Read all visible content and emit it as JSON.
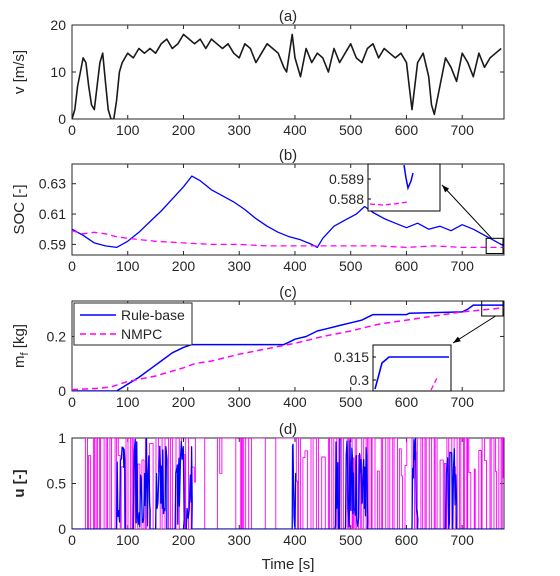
{
  "colors": {
    "black": "#1a1a1a",
    "rule": "#0000ff",
    "nmpc": "#ff00ff",
    "axis": "#262626"
  },
  "chart_data": [
    {
      "id": "a",
      "type": "line",
      "title": "(a)",
      "ylabel": "v [m/s]",
      "xlabel": "",
      "xlim": [
        0,
        775
      ],
      "ylim": [
        0,
        20
      ],
      "xticks": [
        0,
        100,
        200,
        300,
        400,
        500,
        600,
        700
      ],
      "yticks": [
        0,
        10,
        20
      ],
      "series": [
        {
          "name": "",
          "color": "#1a1a1a",
          "x": [
            0,
            5,
            10,
            15,
            20,
            25,
            30,
            35,
            40,
            45,
            50,
            55,
            60,
            65,
            70,
            75,
            80,
            85,
            90,
            100,
            110,
            120,
            130,
            140,
            150,
            160,
            170,
            180,
            190,
            200,
            210,
            220,
            230,
            240,
            250,
            260,
            270,
            280,
            290,
            300,
            310,
            320,
            330,
            340,
            350,
            360,
            370,
            380,
            385,
            390,
            395,
            400,
            410,
            420,
            430,
            440,
            450,
            460,
            470,
            480,
            490,
            500,
            510,
            520,
            530,
            540,
            550,
            560,
            570,
            580,
            590,
            600,
            605,
            610,
            615,
            620,
            630,
            640,
            645,
            650,
            660,
            670,
            680,
            690,
            700,
            710,
            720,
            730,
            740,
            750,
            760,
            770
          ],
          "y": [
            0,
            2,
            7,
            10,
            13,
            12,
            7,
            3,
            2,
            7,
            12,
            14,
            8,
            2,
            0,
            0,
            4,
            10,
            12,
            14,
            13,
            15,
            14,
            15,
            14,
            16,
            17,
            15,
            16,
            18,
            17,
            16,
            17,
            15,
            17,
            16,
            15,
            16,
            14,
            13,
            16,
            15,
            12,
            14,
            16,
            15,
            14,
            11,
            10,
            14,
            18,
            13,
            9,
            15,
            12,
            14,
            13,
            10,
            15,
            12,
            14,
            16,
            13,
            12,
            15,
            16,
            13,
            15,
            14,
            13,
            14,
            12,
            7,
            2,
            7,
            12,
            14,
            9,
            3,
            1,
            7,
            13,
            11,
            8,
            14,
            12,
            9,
            14,
            11,
            13,
            14,
            15
          ]
        }
      ]
    },
    {
      "id": "b",
      "type": "line",
      "title": "(b)",
      "ylabel": "SOC [-]",
      "xlabel": "",
      "xlim": [
        0,
        775
      ],
      "ylim": [
        0.583,
        0.643
      ],
      "xticks": [
        0,
        100,
        200,
        300,
        400,
        500,
        600,
        700
      ],
      "yticks": [
        0.59,
        0.61,
        0.63
      ],
      "series": [
        {
          "name": "Rule-base",
          "color": "#0000ff",
          "x": [
            0,
            20,
            40,
            60,
            80,
            100,
            120,
            140,
            160,
            180,
            200,
            215,
            230,
            250,
            270,
            290,
            310,
            330,
            350,
            370,
            390,
            410,
            430,
            440,
            450,
            470,
            490,
            510,
            525,
            540,
            560,
            580,
            600,
            620,
            640,
            660,
            680,
            700,
            720,
            740,
            755,
            765,
            775
          ],
          "y": [
            0.6,
            0.596,
            0.591,
            0.589,
            0.588,
            0.592,
            0.598,
            0.605,
            0.612,
            0.62,
            0.628,
            0.635,
            0.632,
            0.626,
            0.622,
            0.618,
            0.613,
            0.607,
            0.602,
            0.598,
            0.595,
            0.593,
            0.59,
            0.588,
            0.594,
            0.602,
            0.606,
            0.61,
            0.615,
            0.611,
            0.607,
            0.604,
            0.601,
            0.604,
            0.6,
            0.602,
            0.599,
            0.603,
            0.6,
            0.596,
            0.593,
            0.591,
            0.589
          ]
        },
        {
          "name": "NMPC",
          "color": "#ff00ff",
          "dashed": true,
          "x": [
            0,
            20,
            40,
            60,
            80,
            100,
            150,
            200,
            250,
            300,
            350,
            400,
            450,
            500,
            550,
            600,
            650,
            700,
            750,
            775
          ],
          "y": [
            0.599,
            0.597,
            0.598,
            0.597,
            0.595,
            0.594,
            0.592,
            0.591,
            0.59,
            0.59,
            0.589,
            0.589,
            0.589,
            0.589,
            0.589,
            0.588,
            0.589,
            0.588,
            0.588,
            0.588
          ]
        }
      ],
      "inset": {
        "yticks": [
          0.589,
          0.588
        ]
      }
    },
    {
      "id": "c",
      "type": "line",
      "title": "(c)",
      "ylabel": "m_f [kg]",
      "xlabel": "",
      "xlim": [
        0,
        775
      ],
      "ylim": [
        0,
        0.33
      ],
      "xticks": [
        0,
        100,
        200,
        300,
        400,
        500,
        600,
        700
      ],
      "yticks": [
        0,
        0.2
      ],
      "legend": {
        "position": "top-left",
        "entries": [
          "Rule-base",
          "NMPC"
        ]
      },
      "series": [
        {
          "name": "Rule-base",
          "color": "#0000ff",
          "x": [
            0,
            80,
            100,
            120,
            140,
            160,
            180,
            200,
            215,
            380,
            390,
            400,
            420,
            440,
            460,
            480,
            500,
            520,
            540,
            600,
            605,
            700,
            710,
            720,
            775
          ],
          "y": [
            0,
            0,
            0.025,
            0.05,
            0.08,
            0.11,
            0.14,
            0.16,
            0.17,
            0.17,
            0.18,
            0.19,
            0.2,
            0.22,
            0.23,
            0.24,
            0.25,
            0.26,
            0.28,
            0.28,
            0.285,
            0.29,
            0.3,
            0.315,
            0.315
          ]
        },
        {
          "name": "NMPC",
          "color": "#ff00ff",
          "dashed": true,
          "x": [
            0,
            50,
            70,
            100,
            150,
            200,
            220,
            250,
            300,
            350,
            400,
            450,
            500,
            550,
            600,
            650,
            700,
            750,
            775
          ],
          "y": [
            0.005,
            0.01,
            0.015,
            0.035,
            0.055,
            0.085,
            0.1,
            0.11,
            0.135,
            0.155,
            0.175,
            0.2,
            0.22,
            0.245,
            0.26,
            0.275,
            0.29,
            0.3,
            0.305
          ]
        }
      ],
      "inset": {
        "yticks": [
          0.315,
          0.3
        ]
      }
    },
    {
      "id": "d",
      "type": "line",
      "title": "(d)",
      "ylabel": "u [-]",
      "xlabel": "Time [s]",
      "xlim": [
        0,
        775
      ],
      "ylim": [
        0,
        1
      ],
      "xticks": [
        0,
        100,
        200,
        300,
        400,
        500,
        600,
        700
      ],
      "yticks": [
        0,
        0.5,
        1
      ],
      "series": [
        {
          "name": "NMPC",
          "color": "#ff00ff",
          "note": "switching signal between 0 and 1"
        },
        {
          "name": "Rule-base",
          "color": "#0000ff",
          "note": "bursts between 0 and 1"
        }
      ]
    }
  ]
}
